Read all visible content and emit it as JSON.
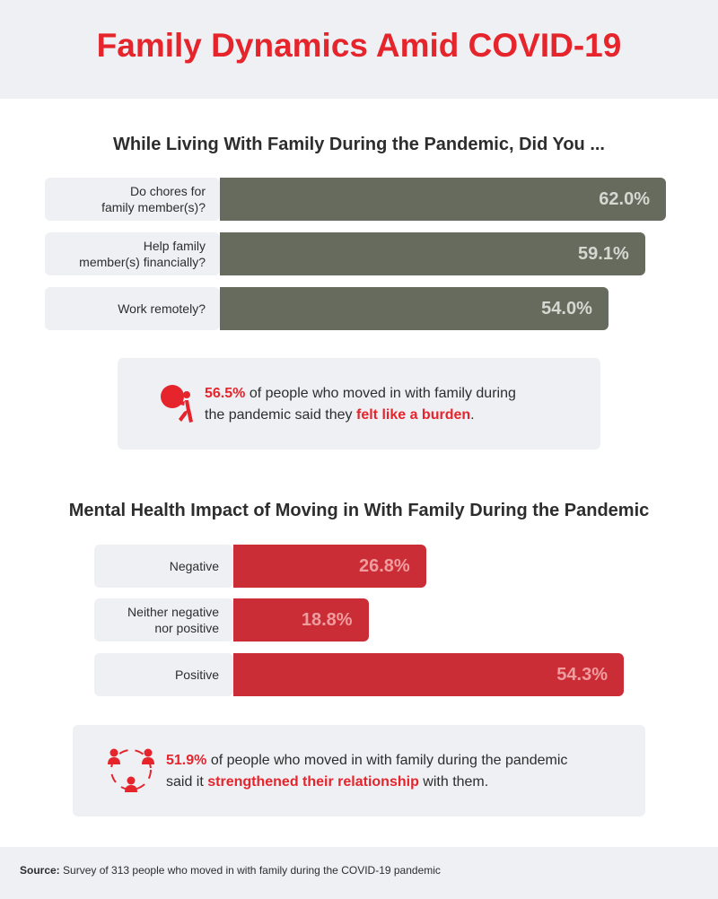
{
  "title": "Family Dynamics Amid COVID-19",
  "colors": {
    "accent": "#e5242c",
    "gray_bar": "#676b5e",
    "red_bar": "#ca2d36",
    "panel": "#eef0f4"
  },
  "chart_data": [
    {
      "type": "bar",
      "orientation": "horizontal",
      "title": "While Living With Family During the Pandemic, Did You ...",
      "categories": [
        "Do chores for family member(s)?",
        "Help family member(s) financially?",
        "Work remotely?"
      ],
      "values": [
        62.0,
        59.1,
        54.0
      ],
      "value_labels": [
        "62.0%",
        "59.1%",
        "54.0%"
      ],
      "unit": "%"
    },
    {
      "type": "bar",
      "orientation": "horizontal",
      "title": "Mental Health Impact of Moving in With Family During the Pandemic",
      "categories": [
        "Negative",
        "Neither negative nor positive",
        "Positive"
      ],
      "values": [
        26.8,
        18.8,
        54.3
      ],
      "value_labels": [
        "26.8%",
        "18.8%",
        "54.3%"
      ],
      "unit": "%"
    }
  ],
  "chart1_labels": {
    "row1": {
      "line1": "Do chores for",
      "line2": "family member(s)?"
    },
    "row2": {
      "line1": "Help family",
      "line2": "member(s) financially?"
    },
    "row3": "Work remotely?"
  },
  "chart2_labels": {
    "row1": "Negative",
    "row2": {
      "line1": "Neither negative",
      "line2": "nor positive"
    },
    "row3": "Positive"
  },
  "callout1": {
    "icon": "burden-person-icon",
    "stat": "56.5%",
    "text_a": " of people who moved in with family during",
    "text_b": "the pandemic said they ",
    "highlight": "felt like a burden",
    "text_c": "."
  },
  "callout2": {
    "icon": "relationship-people-icon",
    "stat": "51.9%",
    "text_a": " of people who moved in with family during the pandemic",
    "text_b": "said it ",
    "highlight": "strengthened their relationship",
    "text_c": " with them."
  },
  "footer": {
    "source_label": "Source:",
    "source_text": " Survey of 313 people who moved in with family during the COVID-19 pandemic"
  }
}
